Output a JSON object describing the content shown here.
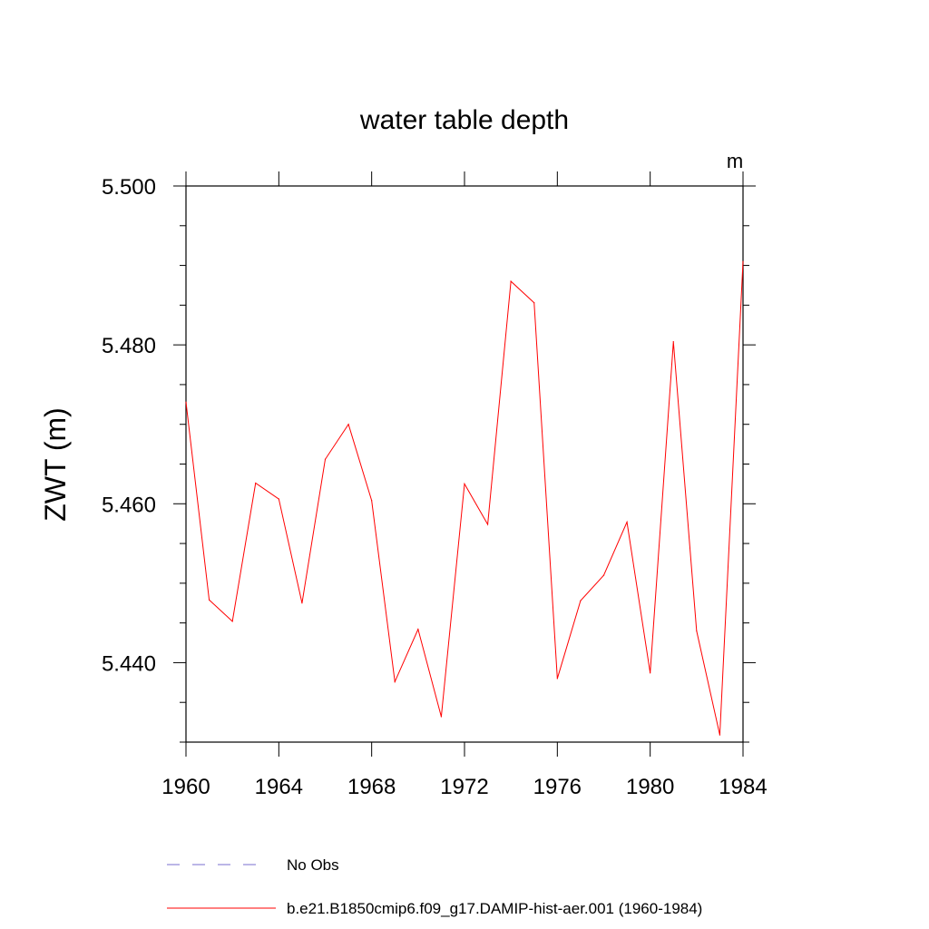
{
  "chart_data": {
    "type": "line",
    "title": "water table depth",
    "ylabel": "ZWT  (m)",
    "xlabel": "",
    "units": "m",
    "xlim": [
      1960,
      1984
    ],
    "ylim": [
      5.43,
      5.5
    ],
    "x_ticks": [
      1960,
      1964,
      1968,
      1972,
      1976,
      1980,
      1984
    ],
    "x_tick_labels": [
      "1960",
      "1964",
      "1968",
      "1972",
      "1976",
      "1980",
      "1984"
    ],
    "y_ticks": [
      5.44,
      5.46,
      5.48,
      5.5
    ],
    "y_tick_labels": [
      "5.440",
      "5.460",
      "5.480",
      "5.500"
    ],
    "grid": false,
    "legend_position": "bottom",
    "series": [
      {
        "name": "b.e21.B1850cmip6.f09_g17.DAMIP-hist-aer.001 (1960-1984)",
        "color": "#ff0000",
        "style": "solid",
        "x": [
          1960,
          1961,
          1962,
          1963,
          1964,
          1965,
          1966,
          1967,
          1968,
          1969,
          1970,
          1971,
          1972,
          1973,
          1974,
          1975,
          1976,
          1977,
          1978,
          1979,
          1980,
          1981,
          1982,
          1983,
          1984
        ],
        "values": [
          5.4728,
          5.4479,
          5.4452,
          5.4626,
          5.4606,
          5.4475,
          5.4656,
          5.47,
          5.4604,
          5.4376,
          5.4442,
          5.4332,
          5.4625,
          5.4574,
          5.488,
          5.4853,
          5.438,
          5.4478,
          5.451,
          5.4577,
          5.4387,
          5.4804,
          5.444,
          5.4309,
          5.4905
        ]
      }
    ],
    "legend": [
      {
        "name": "No Obs",
        "color": "#7a6ccf",
        "style": "dashed"
      },
      {
        "name": "b.e21.B1850cmip6.f09_g17.DAMIP-hist-aer.001 (1960-1984)",
        "color": "#ff0000",
        "style": "solid"
      }
    ]
  }
}
